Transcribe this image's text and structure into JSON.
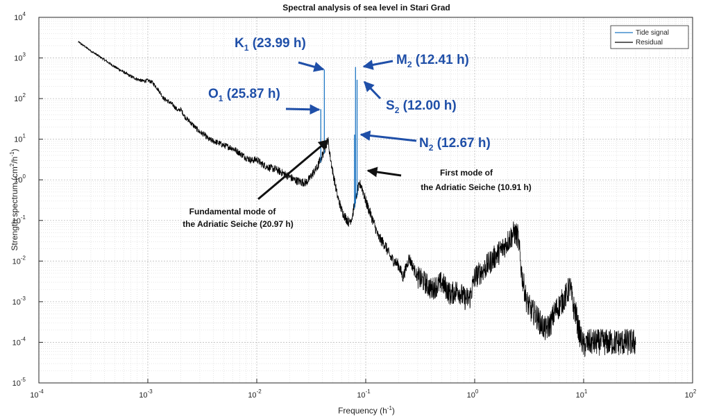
{
  "chart_data": {
    "type": "line",
    "title": "Spectral analysis of sea level in Stari Grad",
    "xlabel": "Frequency (h",
    "xlabel_sup": "-1",
    "xlabel_end": ")",
    "ylabel": "Strength spectrum (cm",
    "ylabel_sup1": "2",
    "ylabel_mid": "/h",
    "ylabel_sup2": "-1",
    "ylabel_end": ")",
    "xscale": "log",
    "yscale": "log",
    "xlim": [
      0.0001,
      100
    ],
    "ylim": [
      1e-05,
      10000
    ],
    "grid": true,
    "legend_position": "top-right",
    "x_ticks": [
      {
        "base": "10",
        "exp": "-4"
      },
      {
        "base": "10",
        "exp": "-3"
      },
      {
        "base": "10",
        "exp": "-2"
      },
      {
        "base": "10",
        "exp": "-1"
      },
      {
        "base": "10",
        "exp": "0"
      },
      {
        "base": "10",
        "exp": "1"
      },
      {
        "base": "10",
        "exp": "2"
      }
    ],
    "y_ticks": [
      {
        "base": "10",
        "exp": "-5"
      },
      {
        "base": "10",
        "exp": "-4"
      },
      {
        "base": "10",
        "exp": "-3"
      },
      {
        "base": "10",
        "exp": "-2"
      },
      {
        "base": "10",
        "exp": "-1"
      },
      {
        "base": "10",
        "exp": "0"
      },
      {
        "base": "10",
        "exp": "1"
      },
      {
        "base": "10",
        "exp": "2"
      },
      {
        "base": "10",
        "exp": "3"
      },
      {
        "base": "10",
        "exp": "4"
      }
    ],
    "series": [
      {
        "name": "Tide signal",
        "color": "#1f77c4",
        "peaks": [
          {
            "x": 0.0387,
            "y": 55
          },
          {
            "x": 0.0417,
            "y": 520
          },
          {
            "x": 0.0789,
            "y": 13
          },
          {
            "x": 0.0806,
            "y": 600
          },
          {
            "x": 0.0833,
            "y": 290
          }
        ]
      },
      {
        "name": "Residual",
        "color": "#000000",
        "x": [
          0.00023,
          0.0003,
          0.0004,
          0.0005,
          0.0006,
          0.0007,
          0.0008,
          0.0009,
          0.001,
          0.0011,
          0.0012,
          0.0013,
          0.0014,
          0.0015,
          0.0017,
          0.0019,
          0.002,
          0.0022,
          0.0025,
          0.0028,
          0.003,
          0.0033,
          0.0036,
          0.004,
          0.0045,
          0.005,
          0.0055,
          0.006,
          0.0065,
          0.007,
          0.008,
          0.009,
          0.01,
          0.011,
          0.012,
          0.013,
          0.015,
          0.017,
          0.02,
          0.022,
          0.025,
          0.028,
          0.03,
          0.033,
          0.036,
          0.038,
          0.04,
          0.043,
          0.045,
          0.047,
          0.05,
          0.055,
          0.06,
          0.065,
          0.07,
          0.075,
          0.08,
          0.085,
          0.09,
          0.095,
          0.1,
          0.11,
          0.12,
          0.13,
          0.15,
          0.17,
          0.2,
          0.22,
          0.25,
          0.28,
          0.3,
          0.35,
          0.4,
          0.45,
          0.5,
          0.6,
          0.7,
          0.8,
          0.9,
          1.0,
          1.2,
          1.5,
          1.8,
          2.0,
          2.3,
          2.5,
          2.7,
          3.0,
          3.3,
          3.6,
          4.0,
          4.5,
          5.0,
          5.5,
          6.0,
          7.0,
          7.5,
          8.0,
          8.5,
          9.0,
          10.0,
          11.0,
          12.0,
          14.0,
          16.0,
          18.0,
          20.0,
          23.0,
          26.0,
          30.0
        ],
        "y": [
          2500,
          1500,
          900,
          600,
          450,
          350,
          300,
          270,
          280,
          250,
          190,
          140,
          100,
          90,
          70,
          50,
          55,
          35,
          25,
          18,
          15,
          13,
          10,
          9,
          8,
          7,
          6.5,
          6,
          5.2,
          4.5,
          3.5,
          3,
          3.2,
          2.5,
          2.2,
          2,
          1.8,
          1.5,
          1.2,
          1.0,
          0.9,
          0.85,
          1.0,
          1.5,
          2.0,
          3.0,
          4.0,
          7.0,
          10.0,
          4.0,
          1.5,
          0.4,
          0.18,
          0.12,
          0.09,
          0.12,
          0.3,
          0.6,
          0.8,
          0.5,
          0.3,
          0.15,
          0.08,
          0.04,
          0.025,
          0.012,
          0.008,
          0.004,
          0.012,
          0.006,
          0.004,
          0.003,
          0.002,
          0.0025,
          0.003,
          0.0015,
          0.002,
          0.0012,
          0.0012,
          0.004,
          0.006,
          0.012,
          0.02,
          0.03,
          0.05,
          0.04,
          0.005,
          0.001,
          0.0006,
          0.0005,
          0.0003,
          0.0002,
          0.0003,
          0.0006,
          0.0008,
          0.0015,
          0.0025,
          0.0008,
          0.0005,
          0.0002,
          8e-05,
          0.0001,
          0.0001,
          0.0001,
          0.0001,
          0.0001,
          0.0001,
          0.0001,
          0.0001,
          0.0001
        ],
        "noise_band": {
          "x": [
            0.3,
            30.0
          ],
          "factor": 2.2
        }
      }
    ],
    "annotations": [
      {
        "label_main": "K",
        "label_sub": "1",
        "label_rest": " (23.99 h)",
        "style": "blue",
        "target": {
          "x": 0.0417,
          "y": 520
        }
      },
      {
        "label_main": "O",
        "label_sub": "1",
        "label_rest": " (25.87 h)",
        "style": "blue",
        "target": {
          "x": 0.0387,
          "y": 55
        }
      },
      {
        "label_main": "M",
        "label_sub": "2",
        "label_rest": " (12.41 h)",
        "style": "blue",
        "target": {
          "x": 0.0806,
          "y": 600
        }
      },
      {
        "label_main": "S",
        "label_sub": "2",
        "label_rest": " (12.00 h)",
        "style": "blue",
        "target": {
          "x": 0.0833,
          "y": 290
        }
      },
      {
        "label_main": "N",
        "label_sub": "2",
        "label_rest": " (12.67 h)",
        "style": "blue",
        "target": {
          "x": 0.0789,
          "y": 13
        }
      },
      {
        "line1": "Fundamental mode of",
        "line2": "the Adriatic Seiche (20.97 h)",
        "style": "black",
        "target": {
          "x": 0.0476,
          "y": 13
        }
      },
      {
        "line1": "First mode of",
        "line2": "the Adriatic Seiche (10.91 h)",
        "style": "black",
        "target": {
          "x": 0.0917,
          "y": 1.6
        }
      }
    ]
  }
}
